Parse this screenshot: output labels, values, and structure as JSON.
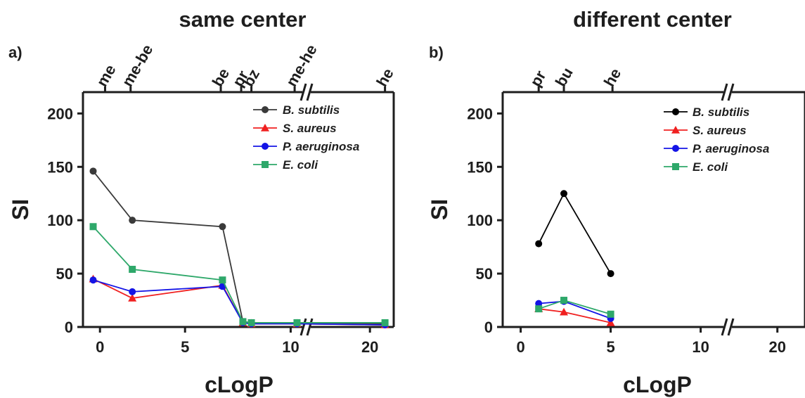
{
  "chart_data": [
    {
      "panel": "a)",
      "title": "same center",
      "type": "line",
      "xlabel": "cLogP",
      "ylabel": "SI",
      "ylim": [
        0,
        220
      ],
      "y_ticks": [
        0,
        50,
        100,
        150,
        200
      ],
      "x_axis_break": true,
      "x_ticks": [
        0,
        5,
        10,
        20
      ],
      "top_labels": [
        {
          "label": "me",
          "x": 0.3
        },
        {
          "label": "me-be",
          "x": 1.8
        },
        {
          "label": "be",
          "x": 7.1
        },
        {
          "label": "pr",
          "x": 8.3
        },
        {
          "label": "bz",
          "x": 8.9
        },
        {
          "label": "me-he",
          "x": 10.5
        },
        {
          "label": "he",
          "x": 21.9
        }
      ],
      "legend_position": "top-right",
      "grid": false,
      "series": [
        {
          "name": "B. subtilis",
          "color": "#3a3a3a",
          "marker": "circle",
          "x": [
            -0.4,
            1.9,
            7.2,
            8.4,
            8.9,
            10.8,
            21.9
          ],
          "values": [
            146,
            100,
            94,
            5,
            4,
            4,
            3
          ]
        },
        {
          "name": "S. aureus",
          "color": "#f02020",
          "marker": "triangle",
          "x": [
            -0.4,
            1.9,
            7.2,
            8.4,
            8.9,
            10.8,
            21.9
          ],
          "values": [
            45,
            27,
            39,
            4,
            3,
            3,
            2
          ]
        },
        {
          "name": "P. aeruginosa",
          "color": "#1414e6",
          "marker": "circle",
          "x": [
            -0.4,
            1.9,
            7.2,
            8.4,
            8.9,
            10.8,
            21.9
          ],
          "values": [
            44,
            33,
            38,
            4,
            3,
            3,
            2
          ]
        },
        {
          "name": "E. coli",
          "color": "#2ea86a",
          "marker": "square",
          "x": [
            -0.4,
            1.9,
            7.2,
            8.4,
            8.9,
            10.8,
            21.9
          ],
          "values": [
            94,
            54,
            44,
            5,
            4,
            4,
            4
          ]
        }
      ]
    },
    {
      "panel": "b)",
      "title": "different center",
      "type": "line",
      "xlabel": "cLogP",
      "ylabel": "SI",
      "ylim": [
        0,
        220
      ],
      "y_ticks": [
        0,
        50,
        100,
        150,
        200
      ],
      "x_axis_break": true,
      "x_ticks": [
        0,
        5,
        10,
        20
      ],
      "top_labels": [
        {
          "label": "pr",
          "x": 1.0
        },
        {
          "label": "bu",
          "x": 2.4
        },
        {
          "label": "he",
          "x": 5.1
        }
      ],
      "legend_position": "top-right",
      "grid": false,
      "series": [
        {
          "name": "B. subtilis",
          "color": "#000000",
          "marker": "circle",
          "x": [
            1.0,
            2.4,
            5.0
          ],
          "values": [
            78,
            125,
            50
          ]
        },
        {
          "name": "S. aureus",
          "color": "#f02020",
          "marker": "triangle",
          "x": [
            1.0,
            2.4,
            5.0
          ],
          "values": [
            17,
            14,
            4
          ]
        },
        {
          "name": "P. aeruginosa",
          "color": "#1414e6",
          "marker": "circle",
          "x": [
            1.0,
            2.4,
            5.0
          ],
          "values": [
            22,
            24,
            8
          ]
        },
        {
          "name": "E. coli",
          "color": "#2ea86a",
          "marker": "square",
          "x": [
            1.0,
            2.4,
            5.0
          ],
          "values": [
            17,
            25,
            12
          ]
        }
      ]
    }
  ]
}
